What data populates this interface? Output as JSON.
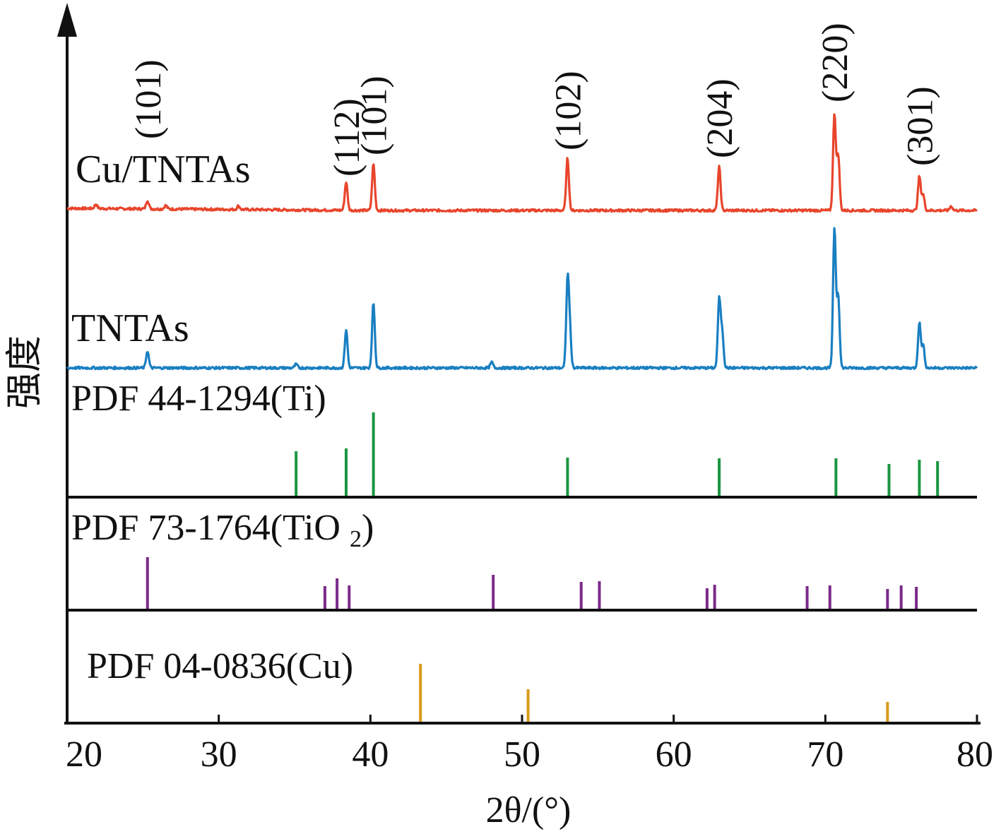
{
  "chart_data": {
    "type": "line",
    "xlabel": "2θ/(°)",
    "ylabel": "强度",
    "xlim": [
      20,
      80
    ],
    "x_ticks": [
      20,
      30,
      40,
      50,
      60,
      70,
      80
    ],
    "colors": {
      "cu_tntas": "#e8452c",
      "tntas": "#1a7fc1",
      "ti_ref": "#1a9640",
      "tio2_ref": "#7b2a8a",
      "cu_ref": "#d99a1a"
    },
    "series": [
      {
        "name": "Cu/TNTAs",
        "kind": "pattern",
        "color_key": "cu_tntas",
        "peaks": [
          {
            "x": 21.9,
            "h": 6
          },
          {
            "x": 25.3,
            "h": 12
          },
          {
            "x": 26.5,
            "h": 5
          },
          {
            "x": 31.3,
            "h": 5
          },
          {
            "x": 38.4,
            "h": 40
          },
          {
            "x": 40.2,
            "h": 66
          },
          {
            "x": 53.0,
            "h": 74
          },
          {
            "x": 63.0,
            "h": 62
          },
          {
            "x": 70.6,
            "h": 137
          },
          {
            "x": 70.85,
            "h": 78
          },
          {
            "x": 76.2,
            "h": 48
          },
          {
            "x": 76.45,
            "h": 22
          },
          {
            "x": 78.3,
            "h": 6
          }
        ]
      },
      {
        "name": "TNTAs",
        "kind": "pattern",
        "color_key": "tntas",
        "peaks": [
          {
            "x": 25.3,
            "h": 24
          },
          {
            "x": 35.1,
            "h": 5
          },
          {
            "x": 38.4,
            "h": 54
          },
          {
            "x": 40.2,
            "h": 92
          },
          {
            "x": 48.0,
            "h": 8
          },
          {
            "x": 53.0,
            "h": 120
          },
          {
            "x": 53.15,
            "h": 48
          },
          {
            "x": 63.0,
            "h": 96
          },
          {
            "x": 63.2,
            "h": 50
          },
          {
            "x": 70.6,
            "h": 198
          },
          {
            "x": 70.85,
            "h": 102
          },
          {
            "x": 76.2,
            "h": 64
          },
          {
            "x": 76.45,
            "h": 32
          }
        ]
      },
      {
        "name": "PDF 44-1294(Ti)",
        "kind": "reference",
        "color_key": "ti_ref",
        "sticks": [
          {
            "x": 35.1,
            "h": 65
          },
          {
            "x": 38.4,
            "h": 69
          },
          {
            "x": 40.2,
            "h": 120
          },
          {
            "x": 53.0,
            "h": 56
          },
          {
            "x": 63.0,
            "h": 55
          },
          {
            "x": 70.7,
            "h": 55
          },
          {
            "x": 74.2,
            "h": 47
          },
          {
            "x": 76.2,
            "h": 53
          },
          {
            "x": 77.4,
            "h": 51
          }
        ]
      },
      {
        "name": "PDF 73-1764(TiO₂)",
        "kind": "reference",
        "color_key": "tio2_ref",
        "sticks": [
          {
            "x": 25.3,
            "h": 75
          },
          {
            "x": 37.0,
            "h": 34
          },
          {
            "x": 37.8,
            "h": 45
          },
          {
            "x": 38.6,
            "h": 35
          },
          {
            "x": 48.1,
            "h": 50
          },
          {
            "x": 53.9,
            "h": 40
          },
          {
            "x": 55.1,
            "h": 41
          },
          {
            "x": 62.2,
            "h": 31
          },
          {
            "x": 62.7,
            "h": 36
          },
          {
            "x": 68.8,
            "h": 34
          },
          {
            "x": 70.3,
            "h": 35
          },
          {
            "x": 74.1,
            "h": 30
          },
          {
            "x": 75.0,
            "h": 35
          },
          {
            "x": 76.0,
            "h": 33
          }
        ]
      },
      {
        "name": "PDF 04-0836(Cu)",
        "kind": "reference",
        "color_key": "cu_ref",
        "sticks": [
          {
            "x": 43.3,
            "h": 84
          },
          {
            "x": 50.4,
            "h": 48
          },
          {
            "x": 74.1,
            "h": 30
          }
        ]
      }
    ],
    "annotations": [
      {
        "text": "(101)",
        "x": 25.3
      },
      {
        "text": "(112)",
        "x": 38.4
      },
      {
        "text": "(101)",
        "x": 40.2
      },
      {
        "text": "(102)",
        "x": 53.0
      },
      {
        "text": "(204)",
        "x": 63.0
      },
      {
        "text": "(220)",
        "x": 70.6
      },
      {
        "text": "(301)",
        "x": 76.2
      }
    ]
  }
}
